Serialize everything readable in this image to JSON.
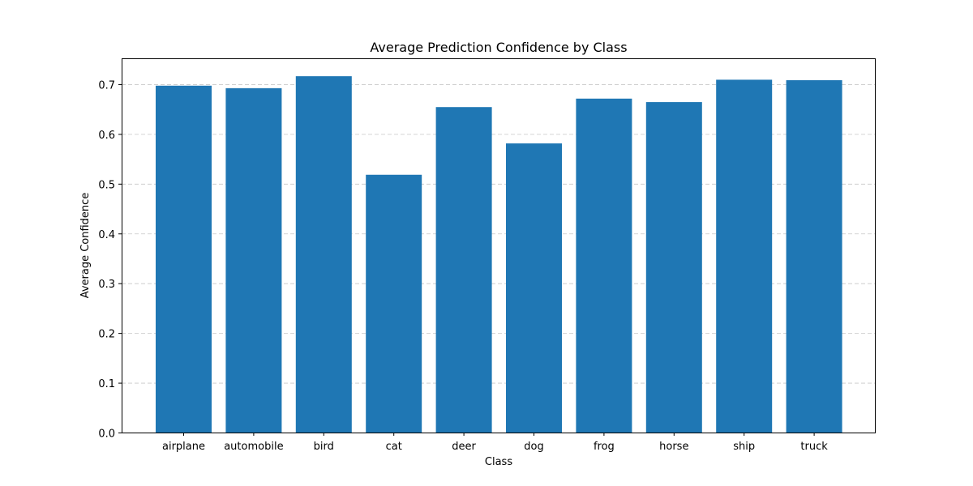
{
  "chart_data": {
    "type": "bar",
    "title": "Average Prediction Confidence by Class",
    "xlabel": "Class",
    "ylabel": "Average Confidence",
    "categories": [
      "airplane",
      "automobile",
      "bird",
      "cat",
      "deer",
      "dog",
      "frog",
      "horse",
      "ship",
      "truck"
    ],
    "values": [
      0.697,
      0.692,
      0.716,
      0.518,
      0.654,
      0.581,
      0.671,
      0.664,
      0.709,
      0.708
    ],
    "ylim": [
      0,
      0.752
    ],
    "yticks": [
      0.0,
      0.1,
      0.2,
      0.3,
      0.4,
      0.5,
      0.6,
      0.7
    ],
    "ytick_labels": [
      "0.0",
      "0.1",
      "0.2",
      "0.3",
      "0.4",
      "0.5",
      "0.6",
      "0.7"
    ],
    "bar_color": "#1f77b4",
    "grid": "y-dashed",
    "legend": "none"
  }
}
